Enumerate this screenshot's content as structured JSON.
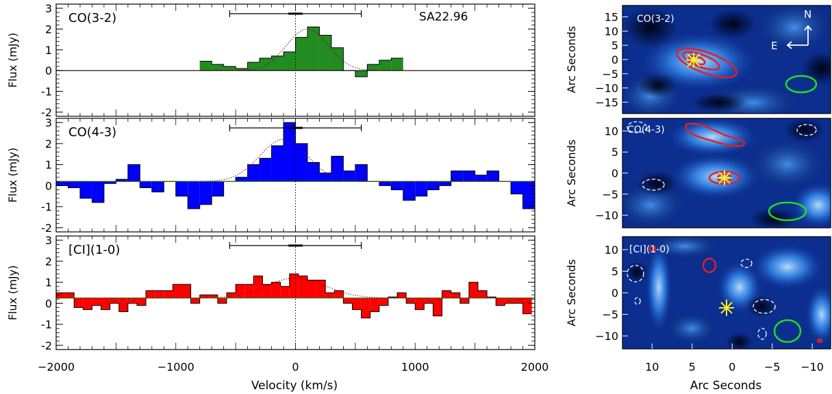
{
  "figure": {
    "left_x_axis": {
      "label": "Velocity (km/s)",
      "tick_labels": [
        "-2000",
        "-1000",
        "0",
        "1000",
        "2000"
      ],
      "range": [
        -2000,
        2000
      ]
    },
    "left_y_axis": {
      "label": "Flux (mJy)",
      "tick_labels": [
        "-2",
        "-1",
        "0",
        "1",
        "2",
        "3"
      ],
      "range": [
        -2.2,
        3.2
      ]
    },
    "map_x_label": "Arc Seconds",
    "map_y_label": "Arc Seconds",
    "map_x_tick_labels": [
      "10",
      "5",
      "0",
      "-5",
      "-10"
    ],
    "source_name": "SA22.96",
    "compass": {
      "north": "N",
      "east": "E"
    },
    "colors": {
      "co32": "#228b22",
      "co43": "#0000ff",
      "ci10": "#ff0000",
      "map_contour": "#e0202a",
      "beam": "#22dd22",
      "cross": "#ffee22"
    }
  },
  "chart_data": [
    {
      "type": "bar",
      "panel": "CO(3-2)",
      "label": "CO(3-2)",
      "x_unit": "km/s",
      "bin_width": 100,
      "x": [
        -800,
        -700,
        -600,
        -500,
        -400,
        -300,
        -200,
        -100,
        0,
        100,
        200,
        300,
        400,
        500,
        600,
        700,
        800
      ],
      "values": [
        0.45,
        0.3,
        0.2,
        0.1,
        0.4,
        0.6,
        0.7,
        0.9,
        1.6,
        2.1,
        1.7,
        1.1,
        0.0,
        -0.3,
        0.3,
        0.5,
        0.6
      ],
      "gaussian_fit": {
        "peak": 2.0,
        "center": 100,
        "sigma": 175,
        "baseline": 0.0
      },
      "velocity_bar": [
        -550,
        550
      ],
      "ylim": [
        -2.2,
        3.2
      ],
      "xlim": [
        -2000,
        2000
      ]
    },
    {
      "type": "bar",
      "panel": "CO(4-3)",
      "label": "CO(4-3)",
      "x_unit": "km/s",
      "bin_width": 100,
      "x": [
        -2000,
        -1900,
        -1800,
        -1700,
        -1600,
        -1500,
        -1400,
        -1300,
        -1200,
        -1100,
        -1000,
        -900,
        -800,
        -700,
        -600,
        -500,
        -400,
        -300,
        -200,
        -100,
        0,
        100,
        200,
        300,
        400,
        500,
        600,
        700,
        800,
        900,
        1000,
        1100,
        1200,
        1300,
        1400,
        1500,
        1600,
        1700,
        1800,
        1900
      ],
      "values": [
        0.0,
        -0.1,
        -0.6,
        -0.8,
        0.1,
        0.3,
        1.0,
        -0.1,
        -0.3,
        0.2,
        -0.5,
        -1.1,
        -0.9,
        -0.5,
        0.2,
        0.4,
        1.0,
        1.3,
        1.9,
        3.0,
        2.0,
        1.1,
        0.6,
        1.4,
        0.7,
        1.0,
        0.2,
        0.0,
        -0.2,
        -0.7,
        -0.5,
        -0.2,
        0.0,
        0.7,
        0.7,
        0.5,
        0.7,
        0.2,
        -0.4,
        -1.1
      ],
      "gaussian_fit": {
        "peak": 2.0,
        "center": -100,
        "sigma": 200,
        "baseline": 0.2
      },
      "velocity_bar": [
        -550,
        550
      ],
      "ylim": [
        -2.2,
        3.2
      ],
      "xlim": [
        -2000,
        2000
      ]
    },
    {
      "type": "bar",
      "panel": "[CI](1-0)",
      "label": "[CI](1-0)",
      "x_unit": "km/s",
      "bin_width": 75,
      "x": [
        -2000,
        -1925,
        -1850,
        -1775,
        -1700,
        -1625,
        -1550,
        -1475,
        -1400,
        -1325,
        -1250,
        -1175,
        -1100,
        -1025,
        -950,
        -875,
        -800,
        -725,
        -650,
        -575,
        -500,
        -425,
        -350,
        -275,
        -200,
        -125,
        -50,
        25,
        100,
        175,
        250,
        325,
        400,
        475,
        550,
        625,
        700,
        775,
        850,
        925,
        1000,
        1075,
        1150,
        1225,
        1300,
        1375,
        1450,
        1525,
        1600,
        1675,
        1750,
        1825,
        1900
      ],
      "values": [
        0.5,
        0.5,
        -0.2,
        -0.3,
        -0.1,
        -0.3,
        0.0,
        -0.4,
        0.0,
        -0.1,
        0.6,
        0.6,
        0.6,
        0.9,
        0.9,
        0.0,
        0.4,
        0.4,
        0.0,
        0.5,
        0.9,
        0.9,
        1.3,
        0.9,
        1.0,
        0.8,
        1.4,
        1.3,
        1.1,
        1.1,
        0.5,
        0.6,
        0.0,
        -0.3,
        -0.7,
        -0.4,
        -0.1,
        0.3,
        0.5,
        0.0,
        -0.3,
        0.0,
        -0.6,
        0.6,
        0.5,
        0.0,
        1.0,
        0.6,
        0.3,
        -0.1,
        0.0,
        0.0,
        -0.5
      ],
      "gaussian_fit": {
        "peak": 0.95,
        "center": 0,
        "sigma": 250,
        "baseline": 0.25
      },
      "velocity_bar": [
        -550,
        550
      ],
      "ylim": [
        -2.2,
        3.2
      ],
      "xlim": [
        -2000,
        2000
      ]
    }
  ],
  "maps": [
    {
      "label": "CO(3-2)",
      "y_tick_labels": [
        "15",
        "10",
        "5",
        "0",
        "-5",
        "-10",
        "-15"
      ],
      "y_ticks": [
        15,
        10,
        5,
        0,
        -5,
        -10,
        -15
      ],
      "ylim": [
        -19,
        19
      ]
    },
    {
      "label": "CO(4-3)",
      "y_tick_labels": [
        "10",
        "5",
        "0",
        "-5",
        "-10"
      ],
      "y_ticks": [
        10,
        5,
        0,
        -5,
        -10
      ],
      "ylim": [
        -13,
        13
      ]
    },
    {
      "label": "[CI](1-0)",
      "y_tick_labels": [
        "10",
        "5",
        "0",
        "-5",
        "-10"
      ],
      "y_ticks": [
        10,
        5,
        0,
        -5,
        -10
      ],
      "ylim": [
        -13,
        13
      ]
    }
  ]
}
